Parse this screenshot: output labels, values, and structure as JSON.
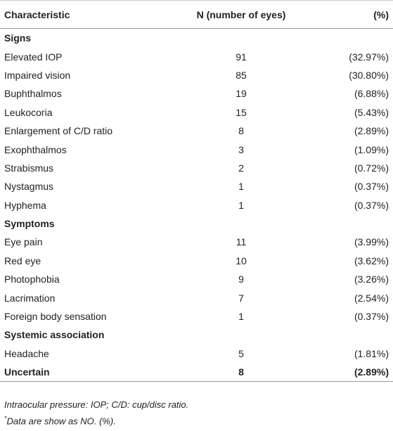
{
  "table": {
    "header": [
      "Characteristic",
      "N (number of eyes)",
      "(%)"
    ],
    "rows": [
      [
        "Signs"
      ],
      [
        "Elevated IOP",
        91,
        "(32.97%)"
      ],
      [
        "Impaired vision",
        85,
        "(30.80%)"
      ],
      [
        "Buphthalmos",
        19,
        "(6.88%)"
      ],
      [
        "Leukocoria",
        15,
        "(5.43%)"
      ],
      [
        "Enlargement of C/D ratio",
        8,
        "(2.89%)"
      ],
      [
        "Exophthalmos",
        3,
        "(1.09%)"
      ],
      [
        "Strabismus",
        2,
        "(0.72%)"
      ],
      [
        "Nystagmus",
        1,
        "(0.37%)"
      ],
      [
        "Hyphema",
        1,
        "(0.37%)"
      ],
      [
        "Symptoms"
      ],
      [
        "Eye pain",
        11,
        "(3.99%)"
      ],
      [
        "Red eye",
        10,
        "(3.62%)"
      ],
      [
        "Photophobia",
        9,
        "(3.26%)"
      ],
      [
        "Lacrimation",
        7,
        "(2.54%)"
      ],
      [
        "Foreign body sensation",
        1,
        "(0.37%)"
      ],
      [
        "Systemic association"
      ],
      [
        "Headache",
        5,
        "(1.81%)"
      ],
      [
        "Uncertain",
        8,
        "(2.89%)"
      ]
    ]
  },
  "footnotes": {
    "abbreviations": "Intraocular pressure: IOP; C/D: cup/disc ratio.",
    "note": {
      "mark": "*",
      "text": "Data are show as NO. (%)."
    }
  }
}
